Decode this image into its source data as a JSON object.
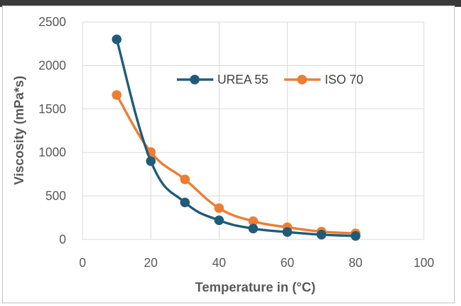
{
  "colors": {
    "urea": "#1F5C7A",
    "iso": "#ED7D31",
    "grid": "#D9D9D9",
    "text": "#595959"
  },
  "chart_data": {
    "type": "line",
    "title": "",
    "xlabel": "Temperature in (°C)",
    "ylabel": "Viscosity (mPa*s)",
    "xlim": [
      0,
      100
    ],
    "ylim": [
      0,
      2500
    ],
    "xticks": [
      0,
      20,
      40,
      60,
      80,
      100
    ],
    "yticks": [
      0,
      500,
      1000,
      1500,
      2000,
      2500
    ],
    "xtick_labels": [
      "0",
      "20",
      "40",
      "60",
      "80",
      "100"
    ],
    "ytick_labels": [
      "0",
      "500",
      "1000",
      "1500",
      "2000",
      "2500"
    ],
    "grid": "both",
    "smooth": true,
    "legend_position": "inside-top-right",
    "series": [
      {
        "name": "UREA 55",
        "x": [
          10,
          20,
          30,
          40,
          50,
          60,
          70,
          80
        ],
        "y": [
          2300,
          900,
          425,
          220,
          125,
          85,
          55,
          40
        ]
      },
      {
        "name": "ISO 70",
        "x": [
          10,
          20,
          30,
          40,
          50,
          60,
          70,
          80
        ],
        "y": [
          1660,
          1005,
          690,
          360,
          210,
          140,
          90,
          70
        ]
      }
    ]
  }
}
